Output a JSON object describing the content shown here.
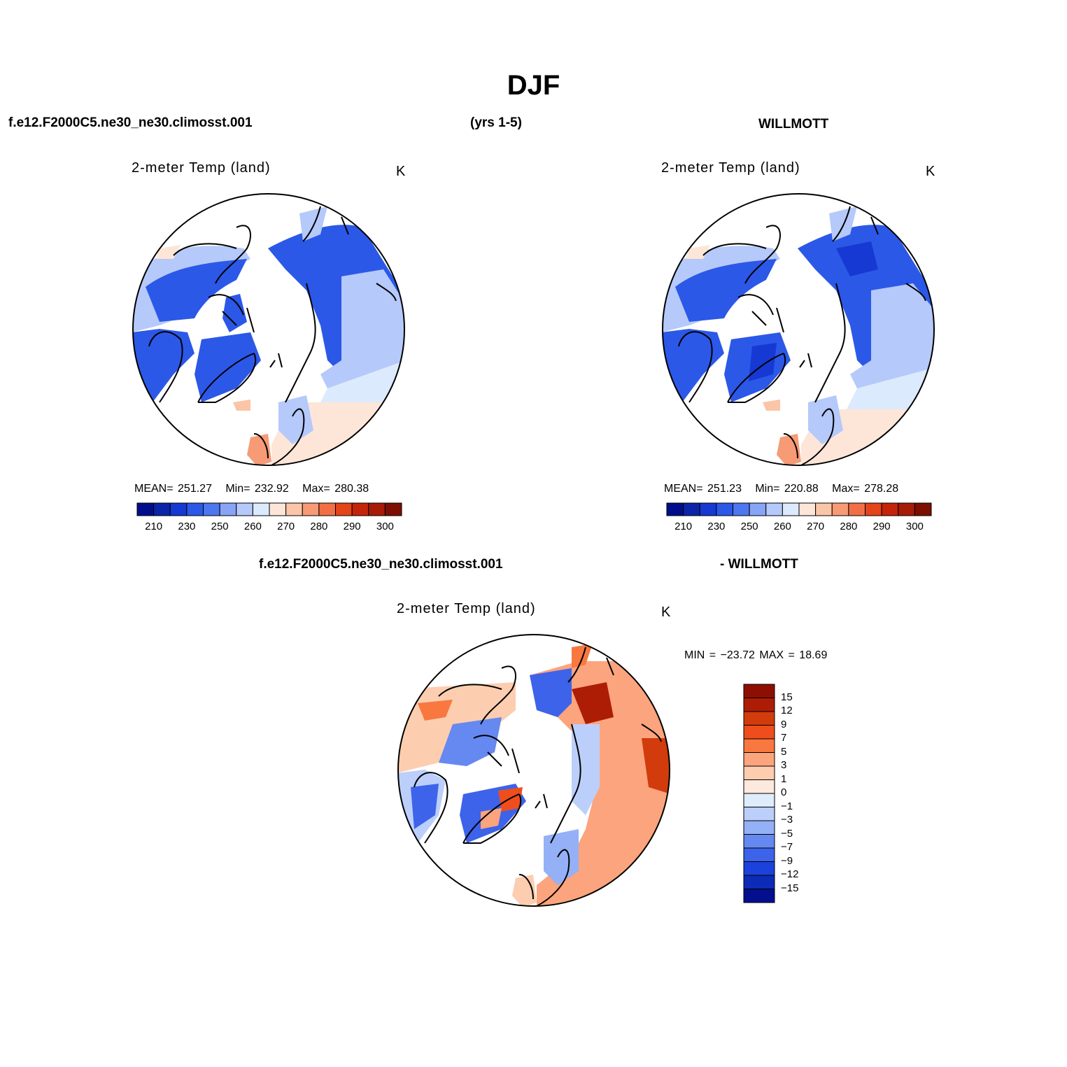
{
  "title": "DJF",
  "header": {
    "case_name": "f.e12.F2000C5.ne30_ne30.climosst.001",
    "years": "(yrs 1-5)",
    "obs_name": "WILLMOTT"
  },
  "panels": [
    {
      "id": "model",
      "variable": "2-meter Temp (land)",
      "units": "K",
      "stats": {
        "mean_label": "MEAN=",
        "mean": "251.27",
        "min_label": "Min=",
        "min": "232.92",
        "max_label": "Max=",
        "max": "280.38"
      }
    },
    {
      "id": "obs",
      "variable": "2-meter Temp (land)",
      "units": "K",
      "stats": {
        "mean_label": "MEAN=",
        "mean": "251.23",
        "min_label": "Min=",
        "min": "220.88",
        "max_label": "Max=",
        "max": "278.28"
      }
    }
  ],
  "abs_colorbar": {
    "colors": [
      "#000e8c",
      "#0b25a8",
      "#1539d2",
      "#2c58e8",
      "#4c77f0",
      "#87a4f6",
      "#b5c9fa",
      "#dceafe",
      "#fde6d8",
      "#fbc5a7",
      "#f69b76",
      "#f26f46",
      "#e34419",
      "#c42508",
      "#a61c07",
      "#7c0e02"
    ],
    "labels": [
      "210",
      "230",
      "250",
      "260",
      "270",
      "280",
      "290",
      "300"
    ]
  },
  "diff_header": {
    "case_name": "f.e12.F2000C5.ne30_ne30.climosst.001",
    "obs_name": "- WILLMOTT"
  },
  "diff_panel": {
    "variable": "2-meter Temp (land)",
    "units": "K",
    "minmax": "MIN = −23.72 MAX =   18.69"
  },
  "diff_colorbar": {
    "colors": [
      "#8e0e02",
      "#ad1d06",
      "#d23b0c",
      "#ef4e1c",
      "#f87840",
      "#fca47d",
      "#fdcdb0",
      "#fde9dd",
      "#deecfc",
      "#bccffa",
      "#94b0f6",
      "#6589f0",
      "#3d63ea",
      "#1c42dc",
      "#0c2bb6",
      "#030f8e"
    ],
    "labels": [
      "15",
      "12",
      "9",
      "7",
      "5",
      "3",
      "1",
      "0",
      "−1",
      "−3",
      "−5",
      "−7",
      "−9",
      "−12",
      "−15"
    ]
  }
}
